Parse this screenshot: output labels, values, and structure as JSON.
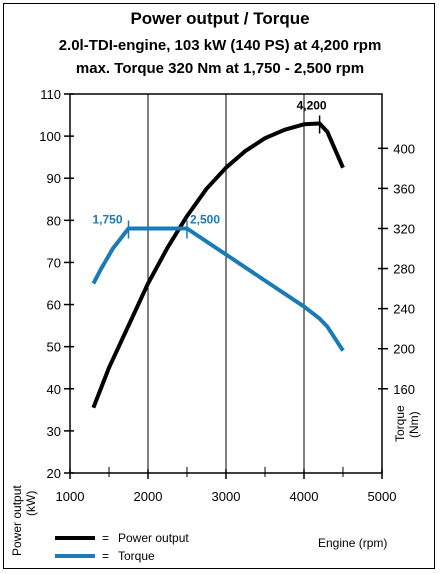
{
  "chart_data": {
    "type": "line",
    "title": "Power output / Torque",
    "subtitle_1": "2.0l-TDI-engine, 103 kW (140 PS) at 4,200 rpm",
    "subtitle_2": "max. Torque 320 Nm at 1,750 - 2,500 rpm",
    "xlabel": "Engine (rpm)",
    "ylabel_left": "Power output (kW)",
    "ylabel_right": "Torque (Nm)",
    "xlim": [
      1000,
      5000
    ],
    "ylim_left": [
      20,
      110
    ],
    "ylim_right": [
      160,
      400
    ],
    "x_ticks": [
      "1000",
      "2000",
      "3000",
      "4000",
      "5000"
    ],
    "y_left_ticks": [
      "20",
      "30",
      "40",
      "50",
      "60",
      "70",
      "80",
      "90",
      "100",
      "110"
    ],
    "y_right_ticks": [
      "160",
      "200",
      "240",
      "280",
      "320",
      "360",
      "400"
    ],
    "grid": true,
    "legend_position": "bottom-left",
    "series": [
      {
        "name": "Power output",
        "axis": "left",
        "color": "#000000",
        "points": [
          [
            1300,
            35.5
          ],
          [
            1500,
            45
          ],
          [
            1750,
            55
          ],
          [
            2000,
            65
          ],
          [
            2250,
            73.5
          ],
          [
            2500,
            81
          ],
          [
            2750,
            87.5
          ],
          [
            3000,
            92.5
          ],
          [
            3250,
            96.5
          ],
          [
            3500,
            99.5
          ],
          [
            3750,
            101.5
          ],
          [
            4000,
            102.8
          ],
          [
            4200,
            103
          ],
          [
            4300,
            101
          ],
          [
            4500,
            92.5
          ]
        ]
      },
      {
        "name": "Torque",
        "axis": "right",
        "color": "#1a7bb5",
        "points": [
          [
            1300,
            265
          ],
          [
            1400,
            280
          ],
          [
            1550,
            300
          ],
          [
            1750,
            320
          ],
          [
            2500,
            320
          ],
          [
            3000,
            294
          ],
          [
            3500,
            268
          ],
          [
            4000,
            242
          ],
          [
            4200,
            230
          ],
          [
            4300,
            222
          ],
          [
            4500,
            198
          ]
        ]
      }
    ],
    "annotations": [
      {
        "text": "4,200",
        "x": 4200,
        "y": 103,
        "axis": "left",
        "color": "#000000"
      },
      {
        "text": "1,750",
        "x": 1750,
        "y": 320,
        "axis": "right",
        "color": "#1a7bb5"
      },
      {
        "text": "2,500",
        "x": 2500,
        "y": 320,
        "axis": "right",
        "color": "#1a7bb5"
      }
    ],
    "legend_marker": "="
  }
}
